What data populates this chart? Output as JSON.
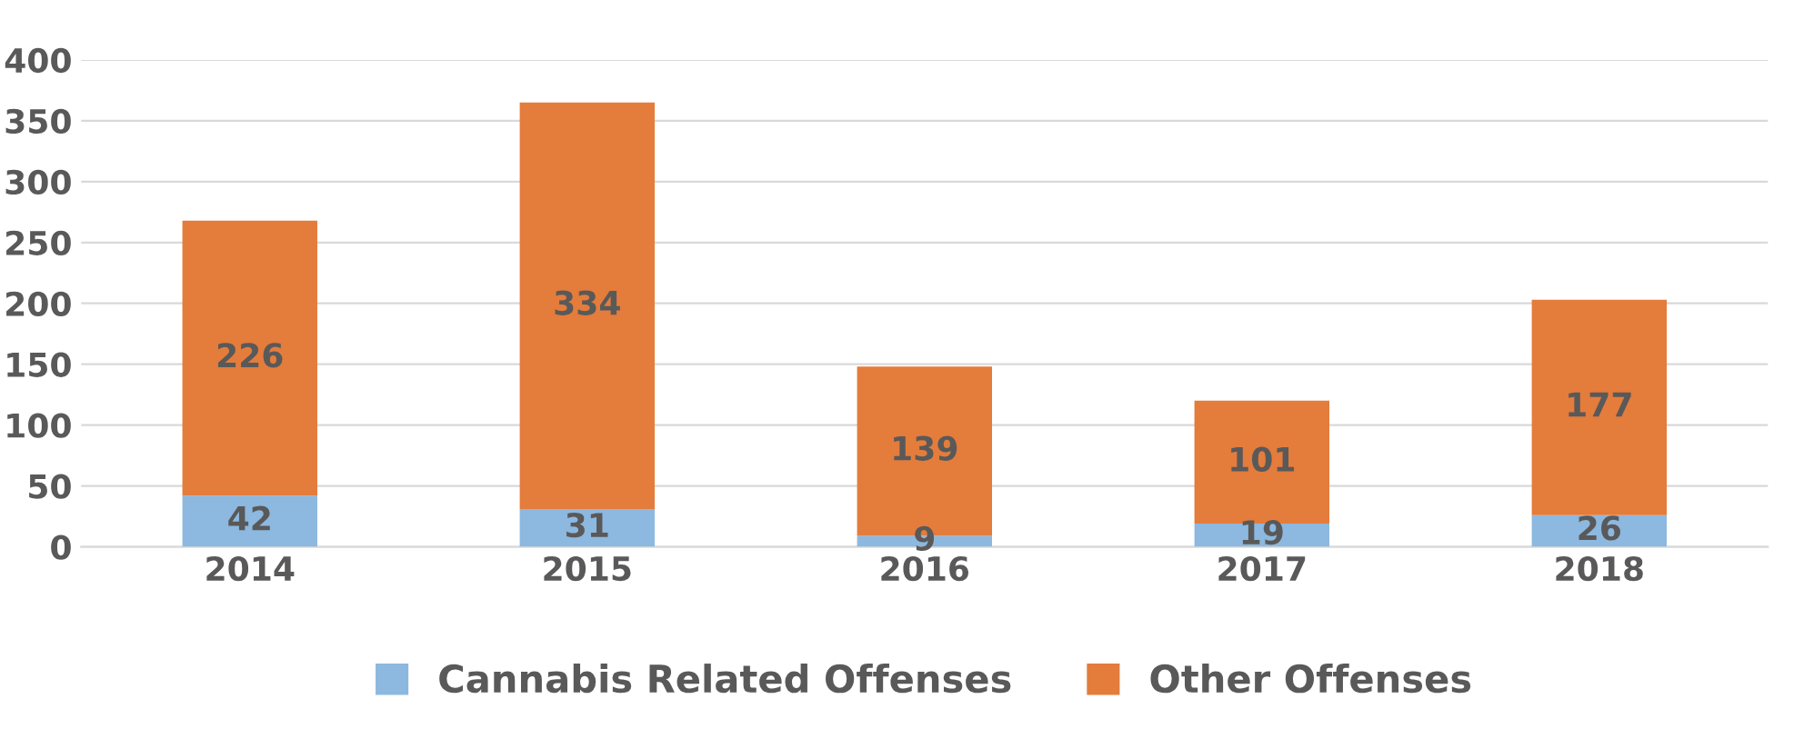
{
  "chart_data": {
    "type": "bar",
    "stacked": true,
    "categories": [
      "2014",
      "2015",
      "2016",
      "2017",
      "2018"
    ],
    "series": [
      {
        "name": "Cannabis Related Offenses",
        "color": "#8db8df",
        "values": [
          42,
          31,
          9,
          19,
          26
        ]
      },
      {
        "name": "Other Offenses",
        "color": "#e47c3c",
        "values": [
          226,
          334,
          139,
          101,
          177
        ]
      }
    ],
    "ylim": [
      0,
      400
    ],
    "yticks": [
      0,
      50,
      100,
      150,
      200,
      250,
      300,
      350,
      400
    ],
    "grid": "y",
    "legend": "bottom",
    "data_labels": true
  }
}
